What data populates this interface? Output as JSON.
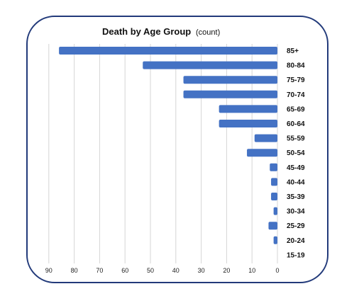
{
  "chart_data": {
    "type": "bar",
    "orientation": "horizontal",
    "title": "Death by Age Group",
    "title_unit": "(count)",
    "xlabel": "",
    "ylabel": "",
    "x_axis_reversed": true,
    "xlim": [
      0,
      90
    ],
    "x_ticks": [
      "90",
      "80",
      "70",
      "60",
      "50",
      "40",
      "30",
      "20",
      "10",
      "0"
    ],
    "grid": true,
    "bar_color": "#4472c4",
    "categories": [
      "85+",
      "80-84",
      "75-79",
      "70-74",
      "65-69",
      "60-64",
      "55-59",
      "50-54",
      "45-49",
      "40-44",
      "35-39",
      "30-34",
      "25-29",
      "20-24",
      "15-19"
    ],
    "values": [
      86,
      53,
      37,
      37,
      23,
      23,
      9,
      12,
      3,
      2.5,
      2.5,
      1.5,
      3.5,
      1.5,
      0
    ]
  }
}
